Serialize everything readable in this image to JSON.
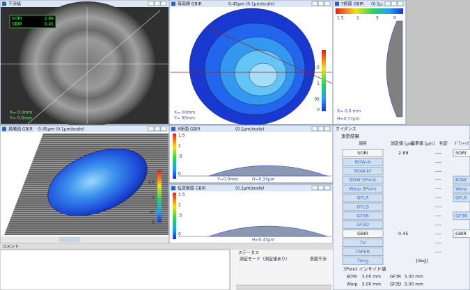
{
  "windows": {
    "fringe": {
      "title": "干渉縞",
      "overlay": [
        [
          "SORI",
          "2.89"
        ],
        [
          "GBIR",
          "0.45"
        ]
      ],
      "coords": [
        "X= 0.0mm",
        "Y= 0.0mm"
      ]
    },
    "contour": {
      "title": "等高線 GBIR",
      "subtitle": "0.45μm (0.1μm/scale)",
      "scale": [
        "1.5",
        "1",
        "05",
        "0"
      ],
      "coords": [
        "X= 00mm",
        "Y= 00mm"
      ]
    },
    "ysection": {
      "title": "Y断面 GBIR",
      "subtitle": "(0.1μ...",
      "scale": [
        "1.5",
        "1",
        "5",
        "0"
      ],
      "pos": "X=   0.0 mm",
      "height": "H=0.37μm"
    },
    "bird": {
      "title": "鳥瞰図 GBIR",
      "subtitle": "0.45μm (0.1μm/scale)",
      "scale": [
        "1.5",
        "1",
        "05",
        "0"
      ]
    },
    "xsection": {
      "title": "X断面 GBIR",
      "subtitle": "(0.1μm/scale)",
      "scale": [
        "1.5",
        "1",
        ".5",
        "0"
      ],
      "pos": "Y=0.0mm",
      "height": "H=0.34μm"
    },
    "anysection": {
      "title": "任意断面 GBIR",
      "subtitle": "(0.1μm/scale)",
      "scale": [
        "1.5",
        "1",
        ".5",
        "0"
      ],
      "height": "H=0.45μm"
    }
  },
  "guidance": {
    "title": "ガイダンス",
    "heading": "測定結果",
    "headers": [
      "項目",
      "測定値 [μm]",
      "基準値 [μm]",
      "判定",
      "ｸﾞﾗﾌｨｯｸ"
    ],
    "rows": [
      {
        "item": "SORI",
        "value": "2.89",
        "judge": "----",
        "graphic": "SORI"
      },
      {
        "item": "BOW-N",
        "judge": "----"
      },
      {
        "item": "BOW-bf",
        "judge": "----"
      },
      {
        "item": "BOW-3Point",
        "judge": "----",
        "graphic": "BOW"
      },
      {
        "item": "Warp-3Point",
        "judge": "----",
        "graphic": "Warp"
      },
      {
        "item": "GFLR",
        "judge": "----",
        "graphic": "GFLR"
      },
      {
        "item": "GFLD",
        "judge": "----"
      },
      {
        "item": "GF3R",
        "judge": "----",
        "graphic": "GF3R"
      },
      {
        "item": "GF3D",
        "judge": "----"
      },
      {
        "item": "GBIR",
        "value": "0.45",
        "judge": "----",
        "graphic": "GBIR"
      },
      {
        "item": "TV",
        "judge": "----"
      },
      {
        "item": "TAPER",
        "judge": "----"
      },
      {
        "item": "TAng",
        "unit": "[deg]"
      }
    ],
    "inside_title": "3Point インサイド値",
    "inside": [
      [
        "BOW",
        "5.00 mm",
        "GF3R",
        "5.00 mm"
      ],
      [
        "Warp",
        "5.00 mm",
        "GF3D",
        "5.00 mm"
      ]
    ]
  },
  "comment": {
    "title": "コメント"
  },
  "status": {
    "title": "ステータス",
    "mode": "測定モード（測定値あり）",
    "method": "表面干渉"
  }
}
